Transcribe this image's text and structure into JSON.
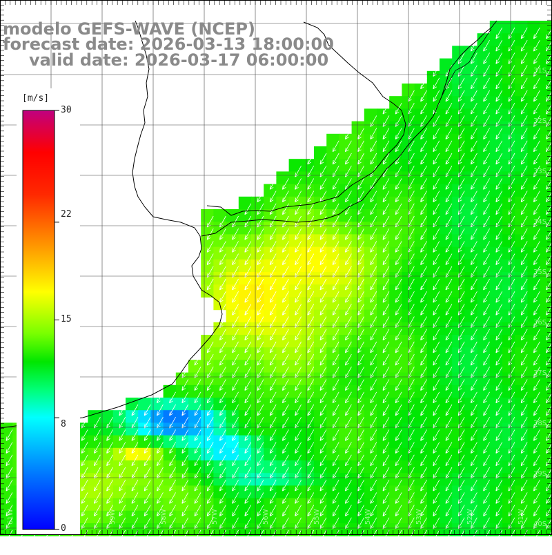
{
  "header": {
    "title": "modelo GEFS-WAVE (NCEP)",
    "forecast_date": "forecast date: 2026-03-13 18:00:00",
    "valid_date": "valid date: 2026-03-17 06:00:00"
  },
  "colorbar": {
    "unit": "[m/s]",
    "min": 0,
    "max": 30,
    "tick_labels": [
      "30",
      "22",
      "15",
      "8",
      "0"
    ],
    "tick_values": [
      30,
      22,
      15,
      8,
      0
    ],
    "colors": [
      "#0000ff",
      "#00c8ff",
      "#00ffff",
      "#00ff40",
      "#00e000",
      "#80ff00",
      "#ffff00",
      "#ffa000",
      "#ff3000",
      "#ff0000",
      "#c00080"
    ]
  },
  "map": {
    "ocean_field": "wind speed with direction arrows",
    "arrow_color": "#ffffff",
    "coastline_color": "#000000",
    "grid_color": "#000000",
    "land_color": "#ffffff",
    "bottom_labels": [
      "61W",
      "60W",
      "59W",
      "58W",
      "57W",
      "56W",
      "55W",
      "54W",
      "53W",
      "52W",
      "51W"
    ],
    "right_labels": [
      "31S",
      "32S",
      "33S",
      "34S",
      "35S",
      "36S",
      "37S",
      "38S",
      "39S",
      "40S",
      "41S"
    ]
  }
}
